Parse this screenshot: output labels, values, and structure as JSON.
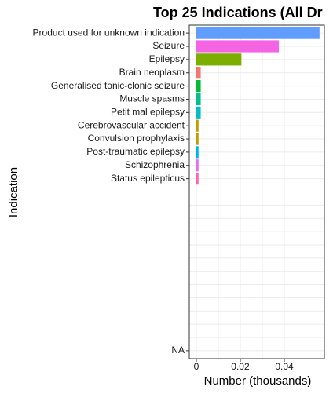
{
  "chart_data": {
    "type": "bar",
    "orientation": "horizontal",
    "title": "Top 25 Indications (All Dr",
    "x_label": "Number (thousands)",
    "y_label": "Indication",
    "categories": [
      "Product used for unknown indication",
      "Seizure",
      "Epilepsy",
      "Brain neoplasm",
      "Generalised tonic-clonic seizure",
      "Muscle spasms",
      "Petit mal epilepsy",
      "Cerebrovascular accident",
      "Convulsion prophylaxis",
      "Post-traumatic epilepsy",
      "Schizophrenia",
      "Status epilepticus",
      null,
      null,
      null,
      null,
      null,
      null,
      null,
      null,
      null,
      null,
      null,
      null,
      "NA"
    ],
    "values": [
      0.056,
      0.0375,
      0.0205,
      0.002,
      0.002,
      0.002,
      0.002,
      0.001,
      0.001,
      0.001,
      0.001,
      0.001,
      0,
      0,
      0,
      0,
      0,
      0,
      0,
      0,
      0,
      0,
      0,
      0,
      0
    ],
    "colors": [
      "#619CFF",
      "#F564E3",
      "#7CAE00",
      "#F8766D",
      "#00BA38",
      "#00C08B",
      "#00BFC4",
      "#C49A00",
      "#B79F00",
      "#00B4F0",
      "#E76BF3",
      "#FF64B0",
      "#999999",
      "#999999",
      "#999999",
      "#999999",
      "#999999",
      "#999999",
      "#999999",
      "#999999",
      "#999999",
      "#999999",
      "#999999",
      "#999999",
      "#999999"
    ],
    "xlim": [
      -0.0032,
      0.0582
    ],
    "xticks": [
      0,
      0.02,
      0.04
    ],
    "grid": true
  }
}
